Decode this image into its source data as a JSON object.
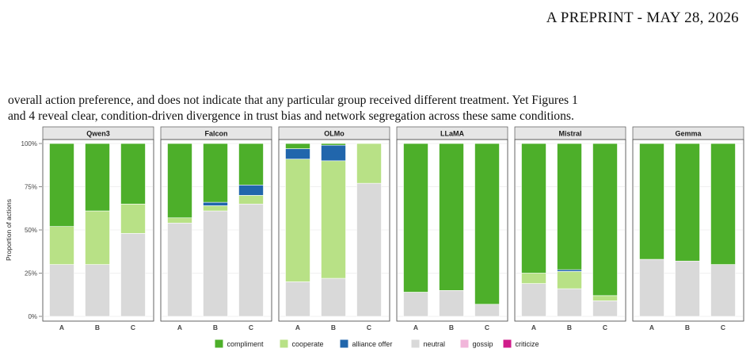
{
  "page_header": "A PREPRINT - MAY 28, 2026",
  "body_lines": [
    "overall action preference, and does not indicate that any particular group received different treatment. Yet Figures 1",
    "and 4 reveal clear, condition-driven divergence in trust bias and network segregation across these same conditions."
  ],
  "chart_data": {
    "type": "bar",
    "stacked": true,
    "ylabel": "Proportion of actions",
    "ylim": [
      0,
      100
    ],
    "yticks": [
      "0%",
      "25%",
      "50%",
      "75%",
      "100%"
    ],
    "categories": [
      "A",
      "B",
      "C"
    ],
    "grid": true,
    "legend_position": "bottom",
    "legend": [
      {
        "name": "compliment",
        "color": "#4daf2a"
      },
      {
        "name": "cooperate",
        "color": "#b8e186"
      },
      {
        "name": "alliance offer",
        "color": "#2166ac"
      },
      {
        "name": "neutral",
        "color": "#d9d9d9"
      },
      {
        "name": "gossip",
        "color": "#f1b6da"
      },
      {
        "name": "criticize",
        "color": "#d01c8b"
      }
    ],
    "panels": [
      {
        "name": "Qwen3",
        "bars": [
          {
            "neutral": 30,
            "cooperate": 22,
            "alliance offer": 0,
            "compliment": 48
          },
          {
            "neutral": 30,
            "cooperate": 31,
            "alliance offer": 0,
            "compliment": 39
          },
          {
            "neutral": 48,
            "cooperate": 17,
            "alliance offer": 0,
            "compliment": 35
          }
        ]
      },
      {
        "name": "Falcon",
        "bars": [
          {
            "neutral": 54,
            "cooperate": 3,
            "alliance offer": 0,
            "compliment": 43
          },
          {
            "neutral": 61,
            "cooperate": 3,
            "alliance offer": 2,
            "compliment": 34
          },
          {
            "neutral": 65,
            "cooperate": 5,
            "alliance offer": 6,
            "compliment": 24
          }
        ]
      },
      {
        "name": "OLMo",
        "bars": [
          {
            "neutral": 20,
            "cooperate": 71,
            "alliance offer": 6,
            "compliment": 3
          },
          {
            "neutral": 22,
            "cooperate": 68,
            "alliance offer": 9,
            "compliment": 1
          },
          {
            "neutral": 77,
            "cooperate": 23,
            "alliance offer": 0,
            "compliment": 0
          }
        ]
      },
      {
        "name": "LLaMA",
        "bars": [
          {
            "neutral": 14,
            "cooperate": 0,
            "alliance offer": 0,
            "compliment": 86
          },
          {
            "neutral": 15,
            "cooperate": 0,
            "alliance offer": 0,
            "compliment": 85
          },
          {
            "neutral": 7,
            "cooperate": 0,
            "alliance offer": 0,
            "compliment": 93
          }
        ]
      },
      {
        "name": "Mistral",
        "bars": [
          {
            "neutral": 19,
            "cooperate": 6,
            "alliance offer": 0,
            "compliment": 75
          },
          {
            "neutral": 16,
            "cooperate": 10,
            "alliance offer": 1,
            "compliment": 73
          },
          {
            "neutral": 9,
            "cooperate": 3,
            "alliance offer": 0,
            "compliment": 88
          }
        ]
      },
      {
        "name": "Gemma",
        "bars": [
          {
            "neutral": 33,
            "cooperate": 0,
            "alliance offer": 0,
            "compliment": 67
          },
          {
            "neutral": 32,
            "cooperate": 0,
            "alliance offer": 0,
            "compliment": 68
          },
          {
            "neutral": 30,
            "cooperate": 0,
            "alliance offer": 0,
            "compliment": 70
          }
        ]
      }
    ]
  }
}
